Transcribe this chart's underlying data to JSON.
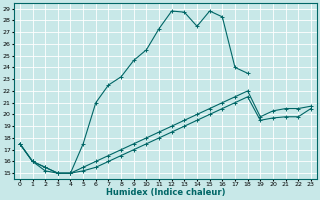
{
  "xlabel": "Humidex (Indice chaleur)",
  "bg_color": "#c8e8e8",
  "grid_color": "#ffffff",
  "line_color": "#006666",
  "xlim": [
    -0.5,
    23.5
  ],
  "ylim": [
    14.5,
    29.5
  ],
  "yticks": [
    15,
    16,
    17,
    18,
    19,
    20,
    21,
    22,
    23,
    24,
    25,
    26,
    27,
    28,
    29
  ],
  "xticks": [
    0,
    1,
    2,
    3,
    4,
    5,
    6,
    7,
    8,
    9,
    10,
    11,
    12,
    13,
    14,
    15,
    16,
    17,
    18,
    19,
    20,
    21,
    22,
    23
  ],
  "line1_x": [
    0,
    1,
    2,
    3,
    4,
    5,
    6,
    7,
    8,
    9,
    10,
    11,
    12,
    13,
    14,
    15,
    16,
    17,
    18
  ],
  "line1_y": [
    17.5,
    16.0,
    15.5,
    15.0,
    15.0,
    17.5,
    21.0,
    22.5,
    23.2,
    24.6,
    25.5,
    27.3,
    28.8,
    28.7,
    27.5,
    28.8,
    28.3,
    24.0,
    23.5
  ],
  "line2_x": [
    0,
    1,
    2,
    3,
    4,
    5,
    6,
    7,
    8,
    9,
    10,
    11,
    12,
    13,
    14,
    15,
    16,
    17,
    18,
    19,
    20,
    21,
    22,
    23
  ],
  "line2_y": [
    17.5,
    16.0,
    15.5,
    15.0,
    15.0,
    15.5,
    16.0,
    16.5,
    17.0,
    17.5,
    18.0,
    18.5,
    19.0,
    19.5,
    20.0,
    20.5,
    21.0,
    21.5,
    22.0,
    19.8,
    20.3,
    20.5,
    20.5,
    20.7
  ],
  "line3_x": [
    0,
    1,
    2,
    3,
    4,
    5,
    6,
    7,
    8,
    9,
    10,
    11,
    12,
    13,
    14,
    15,
    16,
    17,
    18,
    19,
    20,
    21,
    22,
    23
  ],
  "line3_y": [
    17.5,
    16.0,
    15.2,
    15.0,
    15.0,
    15.2,
    15.5,
    16.0,
    16.5,
    17.0,
    17.5,
    18.0,
    18.5,
    19.0,
    19.5,
    20.0,
    20.5,
    21.0,
    21.5,
    19.5,
    19.7,
    19.8,
    19.8,
    20.5
  ]
}
